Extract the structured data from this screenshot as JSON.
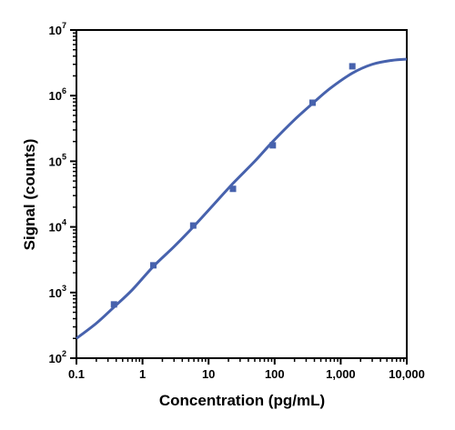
{
  "chart_data": {
    "type": "scatter",
    "xlabel": "Concentration (pg/mL)",
    "ylabel": "Signal (counts)",
    "x_scale": "log",
    "y_scale": "log",
    "xlim": [
      0.1,
      10000
    ],
    "ylim": [
      100,
      10000000
    ],
    "grid": false,
    "x_ticks": [
      {
        "value": 0.1,
        "label": "0.1"
      },
      {
        "value": 1,
        "label": "1"
      },
      {
        "value": 10,
        "label": "10"
      },
      {
        "value": 100,
        "label": "100"
      },
      {
        "value": 1000,
        "label": "1,000"
      },
      {
        "value": 10000,
        "label": "10,000"
      }
    ],
    "y_ticks": [
      {
        "value": 100,
        "base": "10",
        "exp": "2"
      },
      {
        "value": 1000,
        "base": "10",
        "exp": "3"
      },
      {
        "value": 10000,
        "base": "10",
        "exp": "4"
      },
      {
        "value": 100000,
        "base": "10",
        "exp": "5"
      },
      {
        "value": 1000000,
        "base": "10",
        "exp": "6"
      },
      {
        "value": 10000000,
        "base": "10",
        "exp": "7"
      }
    ],
    "series": [
      {
        "type": "scatter",
        "marker": "square",
        "color": "#4762ad",
        "x": [
          0.37,
          1.46,
          5.86,
          23.4,
          93.8,
          375,
          1500
        ],
        "y": [
          660,
          2600,
          10500,
          38000,
          175000,
          780000,
          2800000
        ]
      },
      {
        "type": "line",
        "color": "#4762ad",
        "x": [
          0.1,
          0.2,
          0.37,
          0.7,
          1.46,
          3,
          5.86,
          12,
          23.4,
          50,
          93.8,
          200,
          375,
          700,
          1500,
          3000,
          6000,
          10000
        ],
        "y": [
          200,
          340,
          600,
          1100,
          2500,
          5000,
          10000,
          22000,
          46000,
          100000,
          200000,
          430000,
          760000,
          1300000,
          2200000,
          3000000,
          3450000,
          3600000
        ]
      }
    ]
  }
}
